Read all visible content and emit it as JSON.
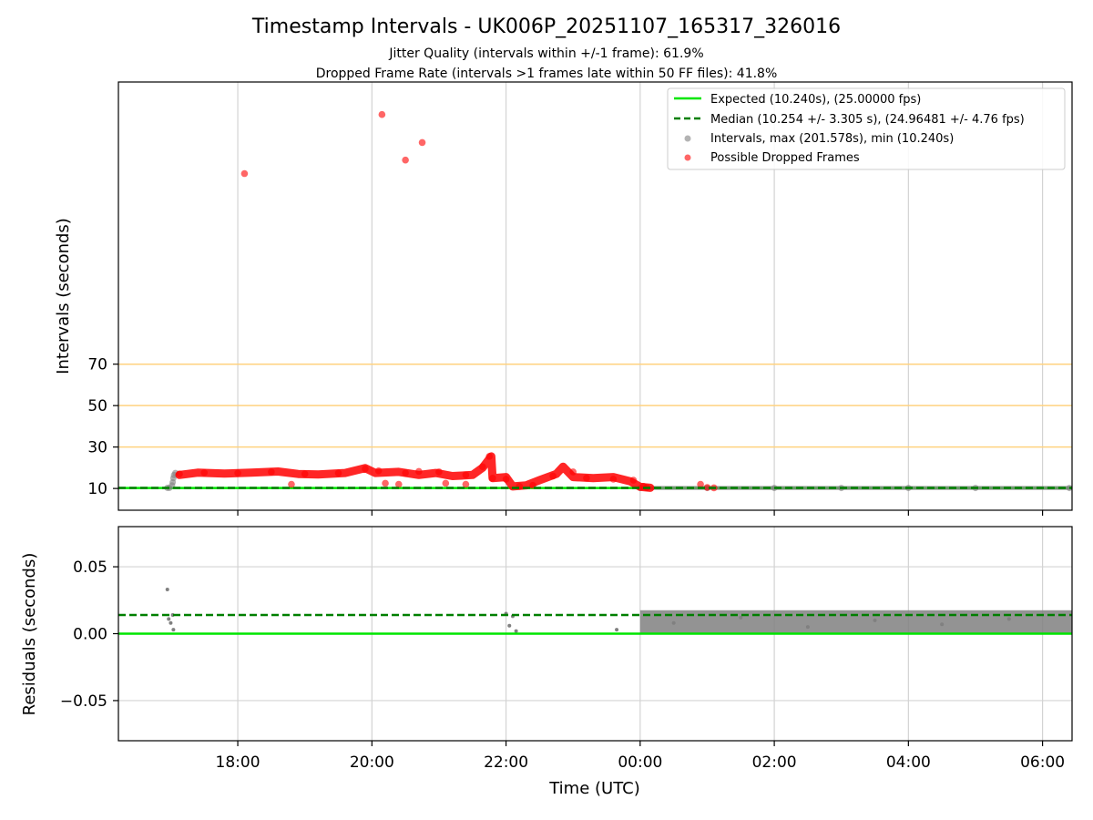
{
  "figure": {
    "title": "Timestamp Intervals - UK006P_20251107_165317_326016",
    "subtitle_1": "Jitter Quality (intervals within +/-1 frame): 61.9%",
    "subtitle_2": "Dropped Frame Rate (intervals >1 frames late within 50 FF files): 41.8%"
  },
  "colors": {
    "expected": "#00e600",
    "median": "#007f00",
    "intervals": "#808080",
    "dropped": "#ff0000",
    "threshold": "#ffd27f",
    "grid": "#d3d3d3"
  },
  "chart_data": [
    {
      "type": "scatter",
      "ylabel": "Intervals (seconds)",
      "xlabel": "",
      "x_unit": "hours since 00:00 UTC of 2025-11-08",
      "xlim": [
        -7.78,
        6.44
      ],
      "ylim": [
        -0.5,
        206.2
      ],
      "yticks": [
        10,
        30,
        50,
        70
      ],
      "xticks": [
        "18:00",
        "20:00",
        "22:00",
        "00:00",
        "02:00",
        "04:00",
        "06:00"
      ],
      "xtick_values": [
        -6,
        -4,
        -2,
        0,
        2,
        4,
        6
      ],
      "grid": "vertical",
      "legend_position": "top-right",
      "legend": [
        "Expected (10.240s), (25.00000 fps)",
        "Median (10.254 +/- 3.305 s), (24.96481 +/- 4.76 fps)",
        "Intervals, max (201.578s), min (10.240s)",
        "Possible Dropped Frames"
      ],
      "reference_lines": {
        "expected": 10.24,
        "median": 10.254,
        "thresholds": [
          30,
          50,
          70
        ]
      },
      "series": [
        {
          "name": "Intervals, max (201.578s), min (10.240s)",
          "points": [
            [
              -7.05,
              10.3
            ],
            [
              -7.02,
              10.3
            ],
            [
              -6.98,
              11.5
            ],
            [
              -6.97,
              13.0
            ],
            [
              -6.96,
              15.0
            ],
            [
              -6.95,
              16.5
            ],
            [
              -6.93,
              17.5
            ],
            [
              0.0,
              10.24
            ],
            [
              1.0,
              10.24
            ],
            [
              2.0,
              10.24
            ],
            [
              3.0,
              10.24
            ],
            [
              4.0,
              10.24
            ],
            [
              5.0,
              10.24
            ],
            [
              6.4,
              10.24
            ]
          ]
        },
        {
          "name": "Possible Dropped Frames",
          "points": [
            [
              -6.87,
              17.0
            ],
            [
              -6.5,
              17.6
            ],
            [
              -6.0,
              17.4
            ],
            [
              -5.5,
              18.0
            ],
            [
              -5.0,
              17.0
            ],
            [
              -4.5,
              17.4
            ],
            [
              -4.1,
              19.5
            ],
            [
              -3.9,
              18.5
            ],
            [
              -3.5,
              17.5
            ],
            [
              -3.3,
              18.2
            ],
            [
              -3.0,
              18.0
            ],
            [
              -2.6,
              16.5
            ],
            [
              -2.35,
              20.5
            ],
            [
              -2.25,
              25.5
            ],
            [
              -2.2,
              15.0
            ],
            [
              -2.0,
              14.5
            ],
            [
              -1.8,
              11.0
            ],
            [
              -1.6,
              11.5
            ],
            [
              -1.3,
              16.0
            ],
            [
              -1.0,
              18.0
            ],
            [
              -0.8,
              15.0
            ],
            [
              -0.4,
              14.5
            ],
            [
              -0.1,
              14.0
            ],
            [
              0.05,
              11.0
            ],
            [
              0.1,
              10.4
            ],
            [
              0.9,
              12.0
            ],
            [
              1.0,
              10.5
            ],
            [
              1.1,
              10.3
            ],
            [
              -5.2,
              12.0
            ],
            [
              -3.8,
              12.5
            ],
            [
              -3.6,
              12.0
            ],
            [
              -2.9,
              12.5
            ],
            [
              -2.6,
              12.0
            ],
            [
              -5.9,
              162.0
            ],
            [
              -3.85,
              190.5
            ],
            [
              -3.5,
              168.5
            ],
            [
              -3.25,
              177.0
            ]
          ]
        }
      ]
    },
    {
      "type": "scatter",
      "ylabel": "Residuals (seconds)",
      "xlabel": "Time (UTC)",
      "x_unit": "hours since 00:00 UTC of 2025-11-08",
      "xlim": [
        -7.78,
        6.44
      ],
      "ylim": [
        -0.08,
        0.08
      ],
      "yticks": [
        -0.05,
        0.0,
        0.05
      ],
      "ytick_labels": [
        "−0.05",
        "0.00",
        "0.05"
      ],
      "xticks": [
        "18:00",
        "20:00",
        "22:00",
        "00:00",
        "02:00",
        "04:00",
        "06:00"
      ],
      "xtick_values": [
        -6,
        -4,
        -2,
        0,
        2,
        4,
        6
      ],
      "grid": "both",
      "reference_lines": {
        "expected": 0.0,
        "median": 0.014
      },
      "series": [
        {
          "name": "Residuals",
          "points": [
            [
              -7.05,
              0.033
            ],
            [
              -7.03,
              0.011
            ],
            [
              -7.0,
              0.008
            ],
            [
              -6.97,
              0.014
            ],
            [
              -6.96,
              0.003
            ],
            [
              -2.0,
              0.015
            ],
            [
              -1.95,
              0.006
            ],
            [
              -1.9,
              0.013
            ],
            [
              -1.85,
              0.002
            ],
            [
              -0.35,
              0.003
            ],
            [
              0.5,
              0.008
            ],
            [
              1.5,
              0.012
            ],
            [
              2.5,
              0.005
            ],
            [
              3.5,
              0.01
            ],
            [
              4.5,
              0.007
            ],
            [
              5.5,
              0.011
            ]
          ]
        }
      ]
    }
  ]
}
